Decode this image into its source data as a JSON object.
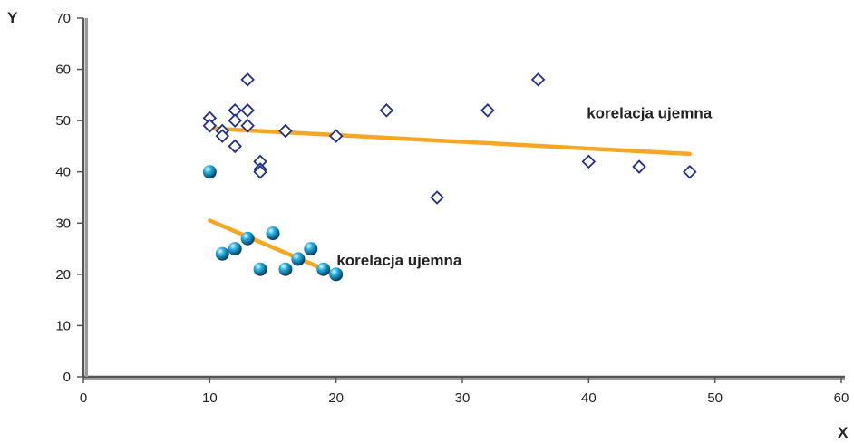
{
  "chart_data": {
    "type": "scatter",
    "xlabel": "X",
    "ylabel": "Y",
    "xlim": [
      0,
      60
    ],
    "ylim": [
      0,
      70
    ],
    "xticks": [
      "0",
      "10",
      "20",
      "30",
      "40",
      "50",
      "60"
    ],
    "yticks": [
      "0",
      "10",
      "20",
      "30",
      "40",
      "50",
      "60",
      "70"
    ],
    "grid": false,
    "series": [
      {
        "marker": "open-diamond",
        "color": "#1f2f8a",
        "x": [
          10,
          10,
          11,
          11,
          12,
          12,
          12,
          13,
          13,
          13,
          14,
          14,
          14,
          16,
          20,
          24,
          28,
          32,
          36,
          40,
          44,
          48
        ],
        "y": [
          50.5,
          49,
          48,
          47,
          52,
          50,
          45,
          58,
          52,
          49,
          42,
          40.5,
          40,
          48,
          47,
          52,
          35,
          52,
          58,
          42,
          41,
          40
        ]
      },
      {
        "marker": "filled-sphere",
        "color": "#1aa7d6",
        "x": [
          10,
          11,
          12,
          13,
          14,
          15,
          16,
          17,
          18,
          19,
          20
        ],
        "y": [
          40,
          24,
          25,
          27,
          21,
          28,
          21,
          23,
          25,
          21,
          20
        ]
      }
    ],
    "trendlines": [
      {
        "color": "#f5a623",
        "x": [
          10,
          48
        ],
        "y": [
          48.5,
          43.5
        ]
      },
      {
        "color": "#f5a623",
        "x": [
          10,
          20
        ],
        "y": [
          30.5,
          20
        ]
      }
    ],
    "annotations": [
      {
        "text": "korelacja ujemna",
        "x": 44.8,
        "y": 50.5
      },
      {
        "text": "korelacja ujemna",
        "x": 25,
        "y": 21.7
      }
    ]
  }
}
